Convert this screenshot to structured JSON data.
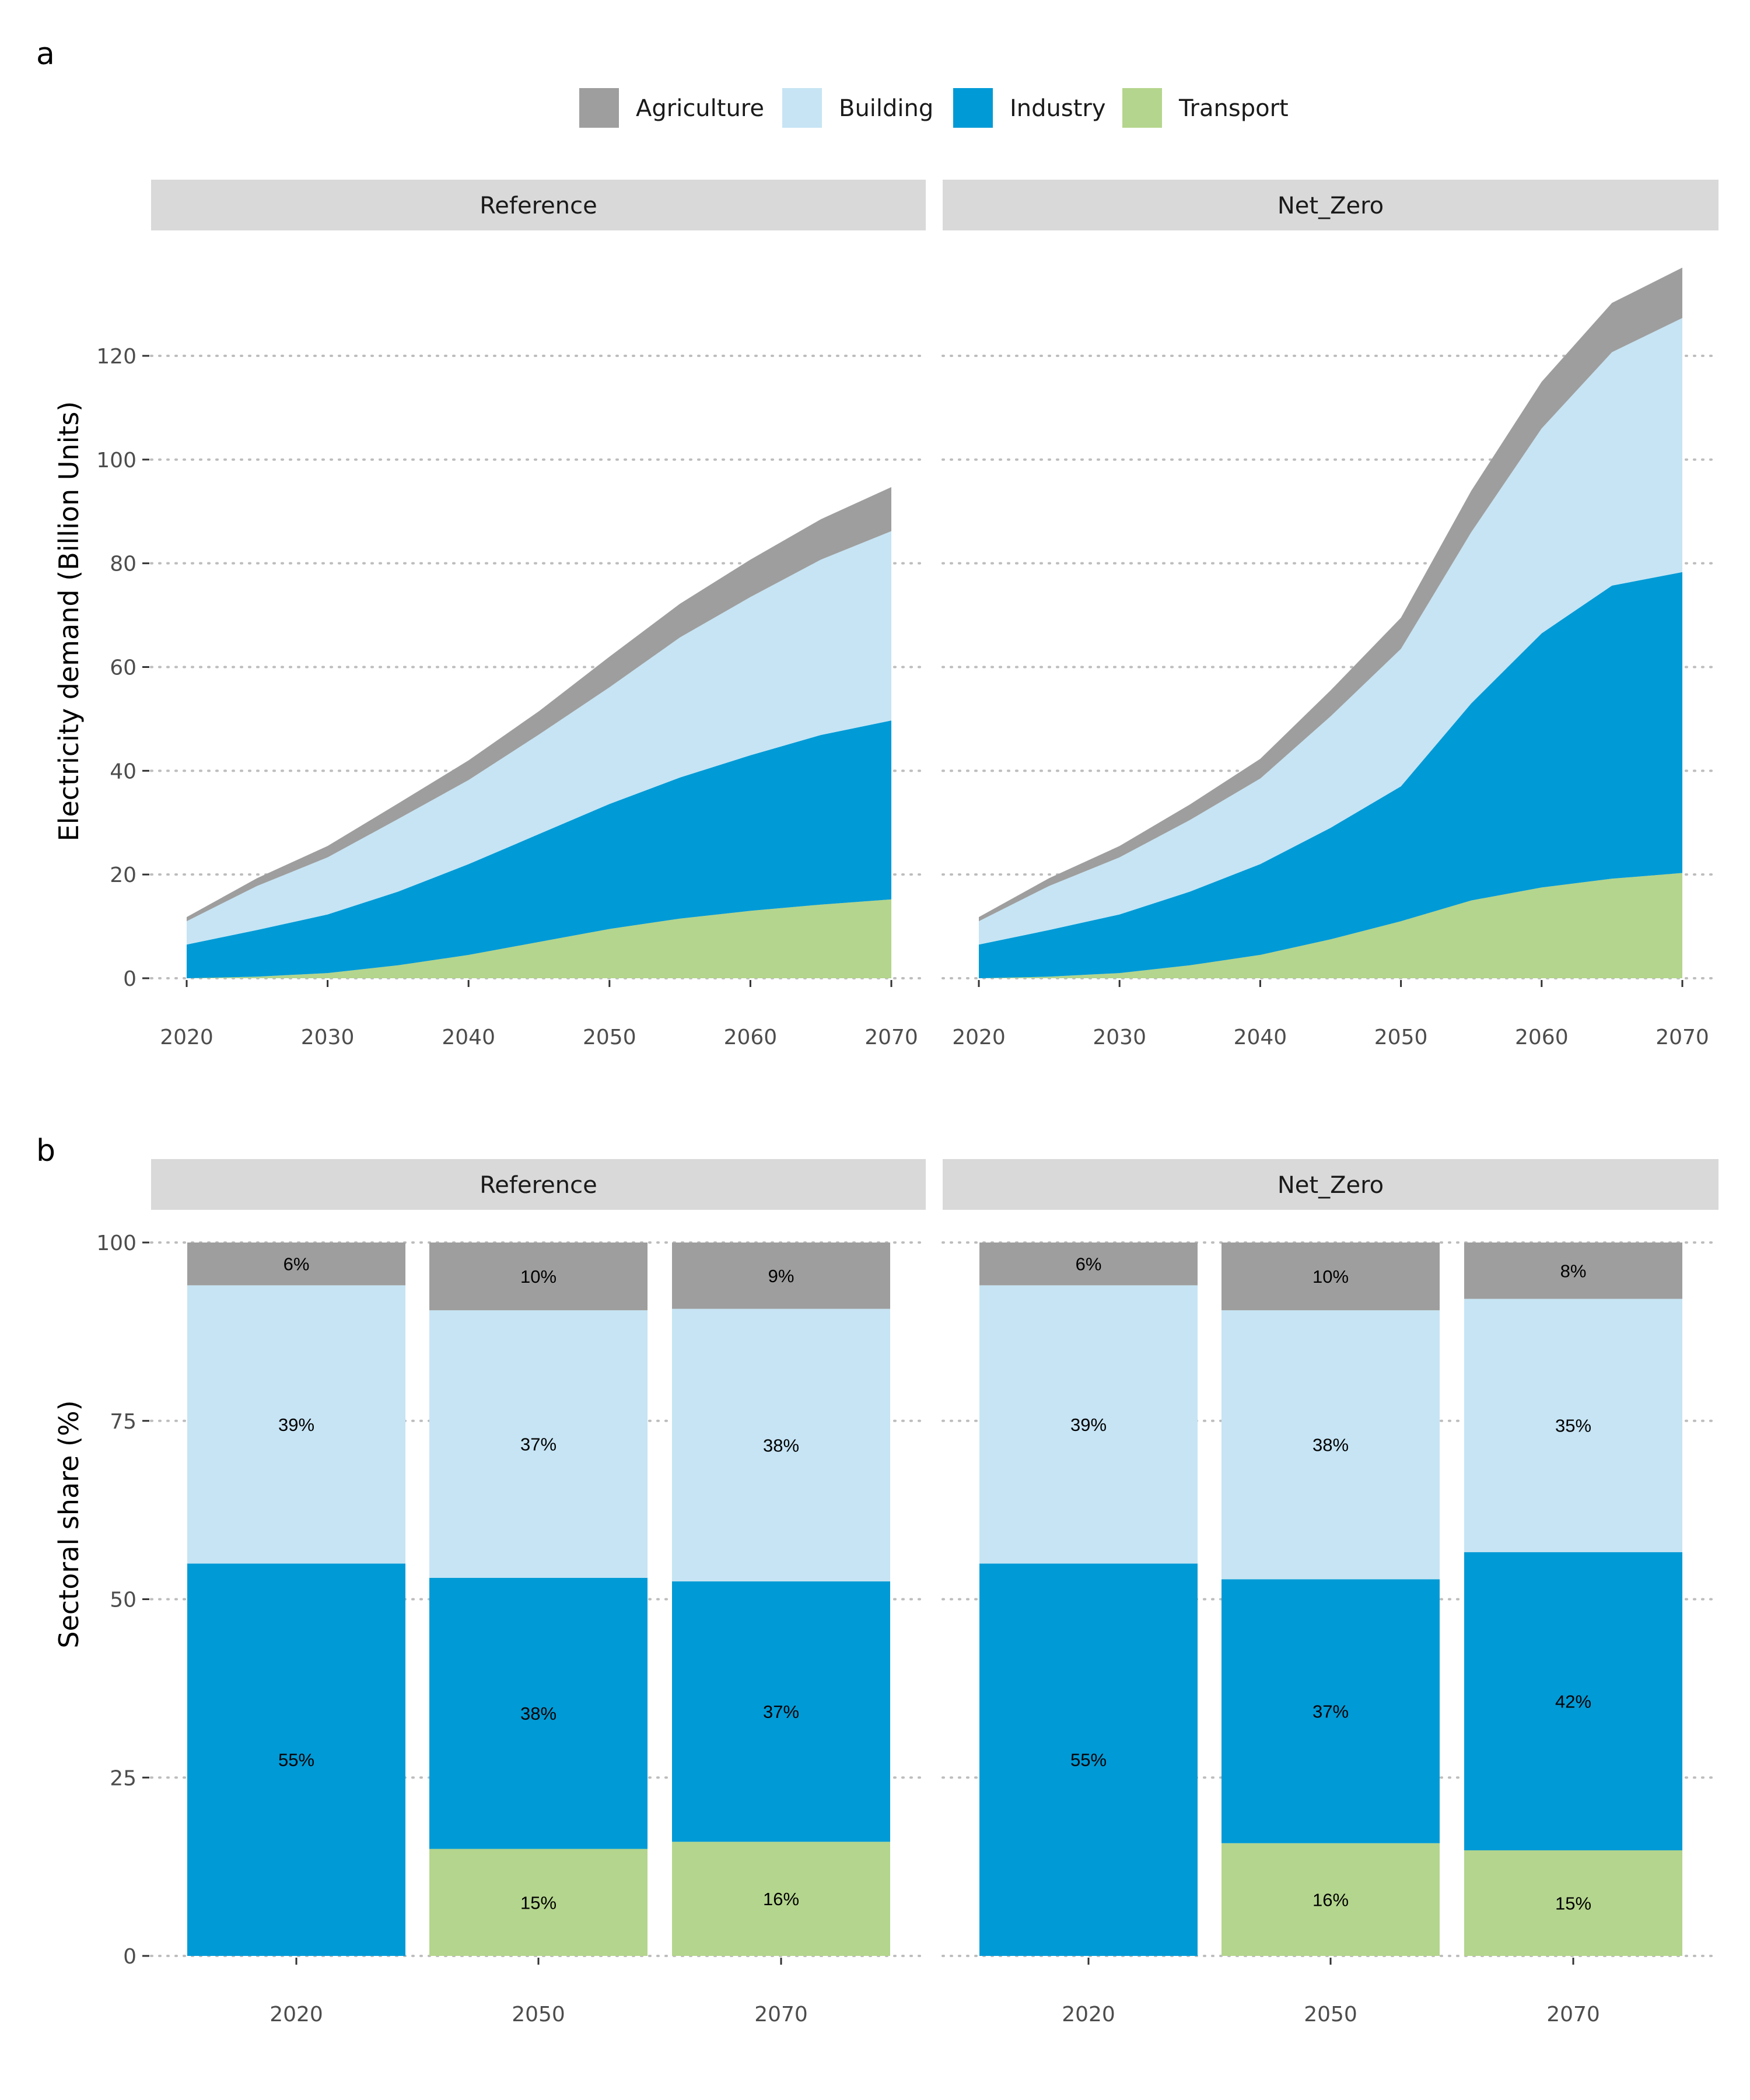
{
  "colors": {
    "Agriculture": "#9e9e9e",
    "Building": "#c6e4f4",
    "Industry": "#009ad6",
    "Transport": "#b4d58d",
    "strip": "#d9d9d9"
  },
  "panel_labels": {
    "a": "a",
    "b": "b"
  },
  "legend": [
    "Agriculture",
    "Building",
    "Industry",
    "Transport"
  ],
  "chart_data": [
    {
      "type": "area",
      "stacked": true,
      "facets": [
        "Reference",
        "Net_Zero"
      ],
      "ylabel": "Electricity demand (Billion Units)",
      "xlabel": "",
      "ylim": [
        0,
        140
      ],
      "yticks": [
        0,
        20,
        40,
        60,
        80,
        100,
        120
      ],
      "xticks": [
        2020,
        2030,
        2040,
        2050,
        2060,
        2070
      ],
      "x": [
        2020,
        2025,
        2030,
        2035,
        2040,
        2045,
        2050,
        2055,
        2060,
        2065,
        2070
      ],
      "grid": "horizontal dotted",
      "legend_position": "top",
      "panels": {
        "Reference": {
          "series": [
            {
              "name": "Transport",
              "values": [
                0,
                0.3,
                1,
                2.5,
                4.5,
                7,
                9.5,
                11.5,
                13,
                14.2,
                15.2
              ]
            },
            {
              "name": "Industry",
              "values": [
                6.5,
                9,
                11.3,
                14.2,
                17.5,
                20.8,
                24.1,
                27.2,
                30,
                32.7,
                34.5
              ]
            },
            {
              "name": "Building",
              "values": [
                4.5,
                8.5,
                11,
                14,
                16.2,
                19.2,
                22.5,
                27,
                30.5,
                33.8,
                36.5
              ]
            },
            {
              "name": "Agriculture",
              "values": [
                0.8,
                1.5,
                2.2,
                3,
                3.8,
                4.5,
                5.9,
                6.5,
                7.2,
                7.8,
                8.5
              ]
            }
          ]
        },
        "Net_Zero": {
          "series": [
            {
              "name": "Transport",
              "values": [
                0,
                0.3,
                1,
                2.5,
                4.5,
                7.5,
                11,
                15,
                17.5,
                19.2,
                20.3
              ]
            },
            {
              "name": "Industry",
              "values": [
                6.5,
                9,
                11.3,
                14.2,
                17.5,
                21.5,
                26,
                38,
                49,
                56.5,
                58
              ]
            },
            {
              "name": "Building",
              "values": [
                4.5,
                8.5,
                11,
                13.8,
                16.5,
                21.5,
                26.5,
                33,
                39.5,
                45,
                49
              ]
            },
            {
              "name": "Agriculture",
              "values": [
                0.8,
                1.5,
                2.2,
                3,
                3.8,
                5,
                6,
                8,
                9,
                9.5,
                9.7
              ]
            }
          ]
        }
      }
    },
    {
      "type": "bar",
      "stacked": true,
      "facets": [
        "Reference",
        "Net_Zero"
      ],
      "ylabel": "Sectoral share (%)",
      "xlabel": "",
      "ylim": [
        0,
        100
      ],
      "yticks": [
        0,
        25,
        50,
        75,
        100
      ],
      "categories": [
        "2020",
        "2050",
        "2070"
      ],
      "grid": "horizontal dotted",
      "panels": {
        "Reference": {
          "series": [
            {
              "name": "Transport",
              "values": [
                0,
                15,
                16
              ],
              "labels": [
                "",
                "15%",
                "16%"
              ]
            },
            {
              "name": "Industry",
              "values": [
                55,
                38,
                36.5
              ],
              "labels": [
                "55%",
                "38%",
                "37%"
              ]
            },
            {
              "name": "Building",
              "values": [
                39,
                37.5,
                38.2
              ],
              "labels": [
                "39%",
                "37%",
                "38%"
              ]
            },
            {
              "name": "Agriculture",
              "values": [
                6,
                9.5,
                9.3
              ],
              "labels": [
                "6%",
                "10%",
                "9%"
              ]
            }
          ]
        },
        "Net_Zero": {
          "series": [
            {
              "name": "Transport",
              "values": [
                0,
                15.8,
                14.8
              ],
              "labels": [
                "",
                "16%",
                "15%"
              ]
            },
            {
              "name": "Industry",
              "values": [
                55,
                37,
                41.8
              ],
              "labels": [
                "55%",
                "37%",
                "42%"
              ]
            },
            {
              "name": "Building",
              "values": [
                39,
                37.7,
                35.5
              ],
              "labels": [
                "39%",
                "38%",
                "35%"
              ]
            },
            {
              "name": "Agriculture",
              "values": [
                6,
                9.5,
                7.9
              ],
              "labels": [
                "6%",
                "10%",
                "8%"
              ]
            }
          ]
        }
      }
    }
  ]
}
